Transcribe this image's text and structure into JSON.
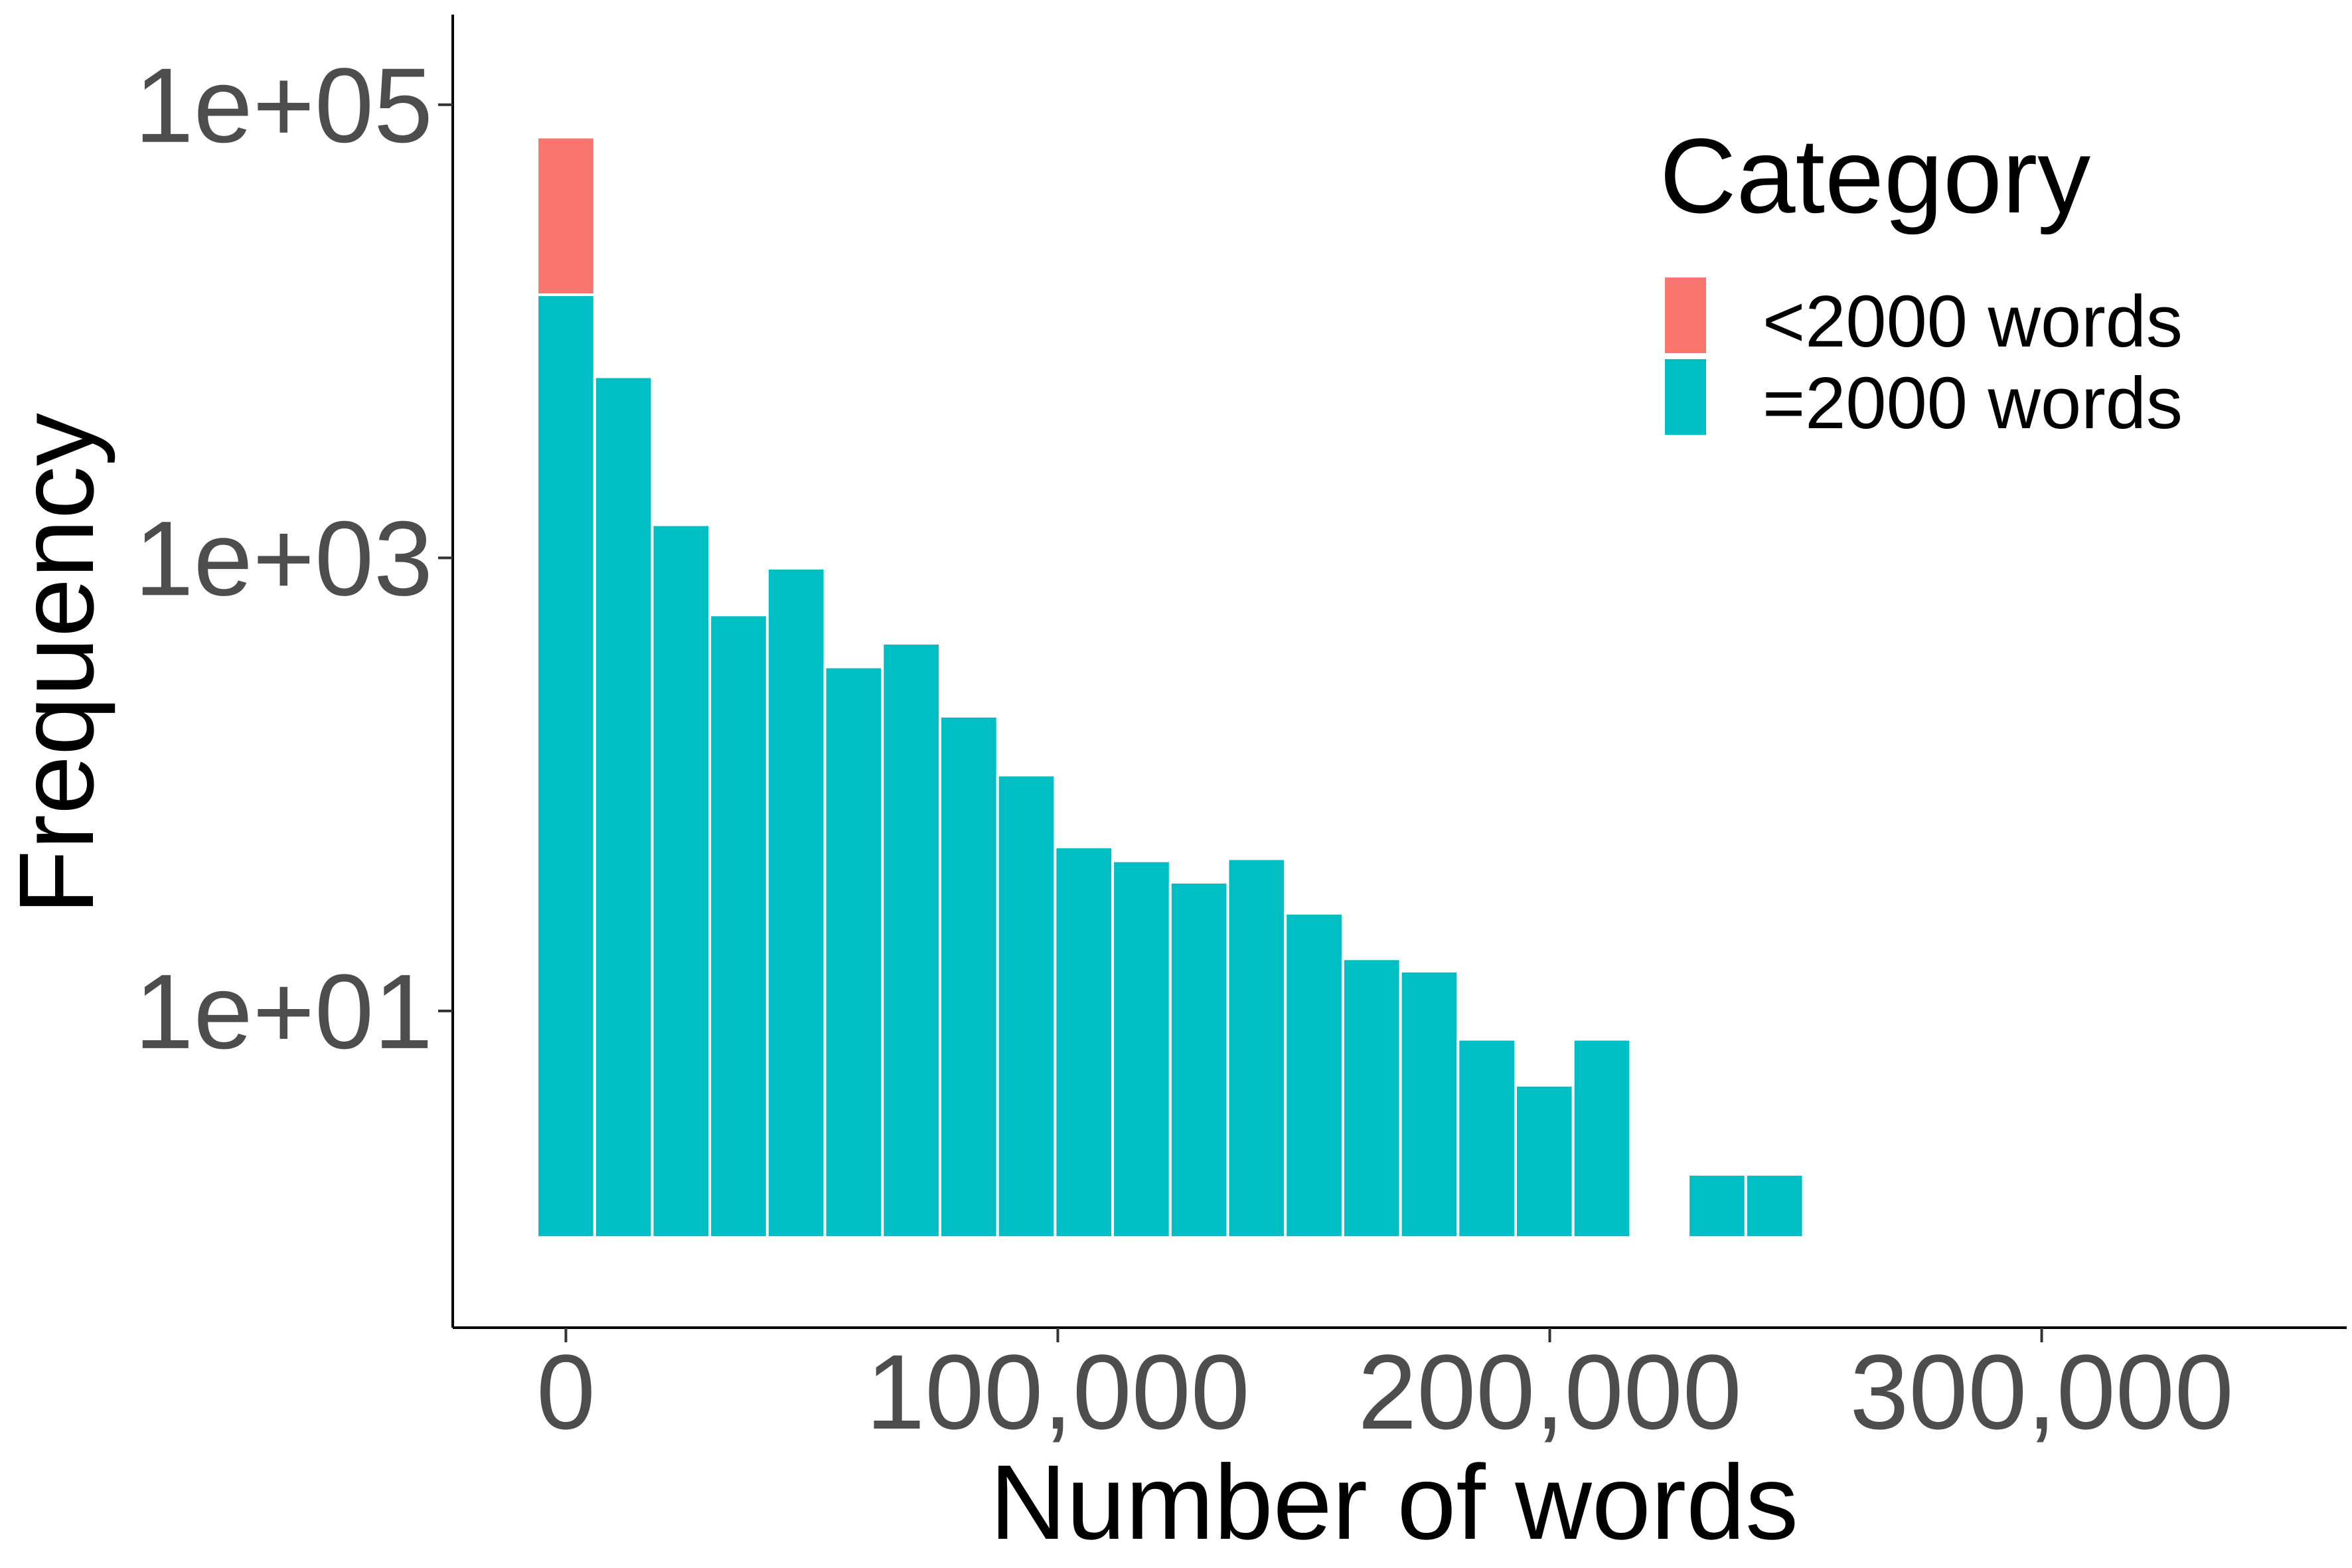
{
  "chart_data": {
    "type": "bar",
    "xlabel": "Number of words",
    "ylabel": "Frequency",
    "y_scale": "log10",
    "ylim": [
      0.4,
      250000
    ],
    "xlim": [
      -23000,
      362000
    ],
    "x_ticks": [
      0,
      100000,
      200000,
      300000
    ],
    "x_tick_labels": [
      "0",
      "100,000",
      "200,000",
      "300,000"
    ],
    "y_ticks": [
      10,
      1000,
      100000
    ],
    "y_tick_labels": [
      "1e+01",
      "1e+03",
      "1e+05"
    ],
    "bin_width": 11700,
    "bar_base": 1,
    "legend": {
      "title": "Category",
      "position": "top-right"
    },
    "series": [
      {
        "name": "<2000 words",
        "color": "#F8766D",
        "bars": [
          {
            "x": 0,
            "value": 72000
          }
        ]
      },
      {
        "name": "=2000 words",
        "color": "#00BFC4",
        "bars": [
          {
            "x": 0,
            "value": 14500
          },
          {
            "x": 11700,
            "value": 6300
          },
          {
            "x": 23400,
            "value": 1400
          },
          {
            "x": 35100,
            "value": 560
          },
          {
            "x": 46800,
            "value": 900
          },
          {
            "x": 58500,
            "value": 330
          },
          {
            "x": 70200,
            "value": 420
          },
          {
            "x": 81900,
            "value": 200
          },
          {
            "x": 93600,
            "value": 110
          },
          {
            "x": 105300,
            "value": 53
          },
          {
            "x": 117000,
            "value": 46
          },
          {
            "x": 128700,
            "value": 37
          },
          {
            "x": 140400,
            "value": 47
          },
          {
            "x": 152100,
            "value": 27
          },
          {
            "x": 163800,
            "value": 17
          },
          {
            "x": 175500,
            "value": 15
          },
          {
            "x": 187200,
            "value": 7.5
          },
          {
            "x": 198900,
            "value": 4.7
          },
          {
            "x": 210600,
            "value": 7.5
          },
          {
            "x": 222300,
            "value": 0
          },
          {
            "x": 234000,
            "value": 1.9
          },
          {
            "x": 245700,
            "value": 1.9
          }
        ]
      }
    ]
  }
}
